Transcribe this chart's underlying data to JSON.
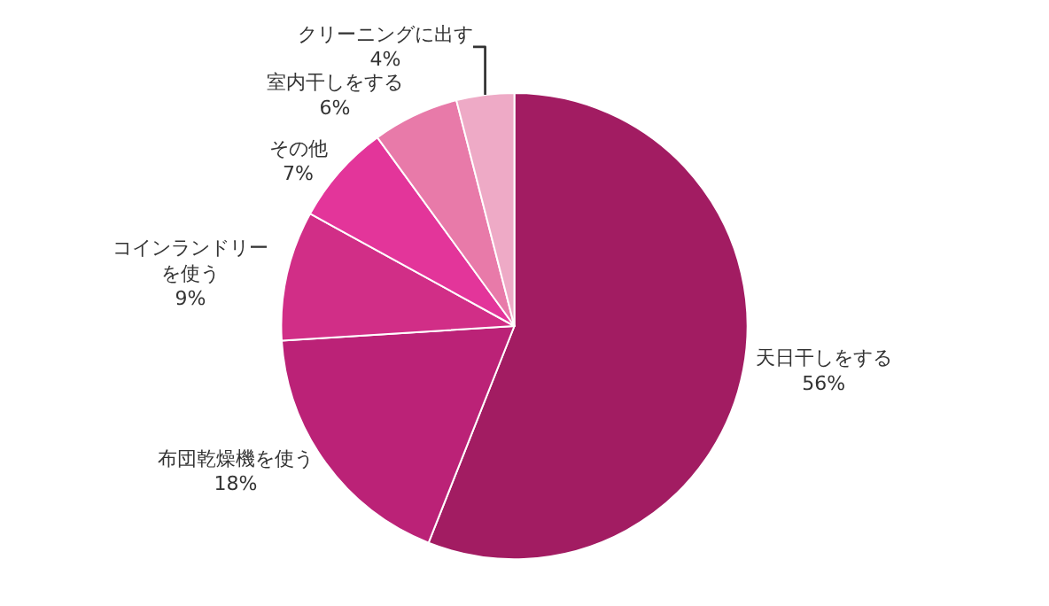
{
  "chart_data": {
    "type": "pie",
    "categories": [
      "天日干しをする",
      "布団乾燥機を使う",
      "コインランドリーを使う",
      "その他",
      "室内干しをする",
      "クリーニングに出す"
    ],
    "values": [
      56,
      18,
      9,
      7,
      6,
      4
    ],
    "value_labels": [
      "56%",
      "18%",
      "9%",
      "7%",
      "6%",
      "4%"
    ],
    "colors": [
      "#a21c62",
      "#bb2277",
      "#d12e87",
      "#e3359a",
      "#e87aa9",
      "#eeaac6"
    ],
    "legend": false
  }
}
